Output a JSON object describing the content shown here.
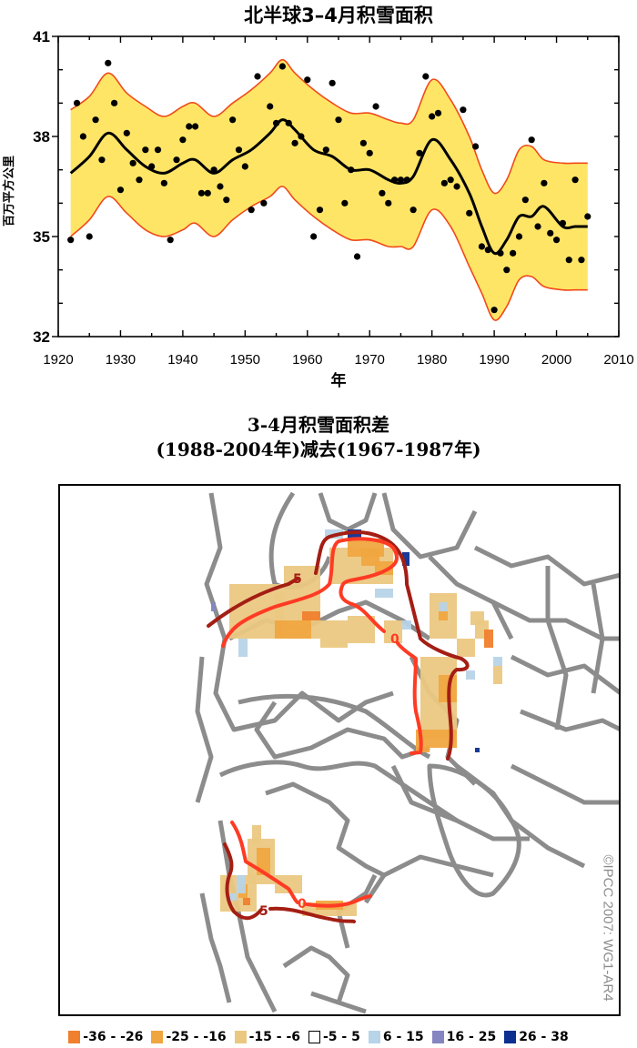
{
  "chart_data": [
    {
      "type": "scatter",
      "title": "北半球3–4月积雪面积",
      "xlabel": "年",
      "ylabel": "百万平方公里",
      "xlim": [
        1920,
        2010
      ],
      "ylim": [
        32,
        41
      ],
      "xticks": [
        1920,
        1930,
        1940,
        1950,
        1960,
        1970,
        1980,
        1990,
        2000,
        2010
      ],
      "yticks": [
        32,
        35,
        38,
        41
      ],
      "grid": false,
      "series": [
        {
          "name": "annual observations",
          "style": "black dots",
          "x": [
            1922,
            1923,
            1924,
            1925,
            1926,
            1927,
            1928,
            1929,
            1930,
            1931,
            1932,
            1933,
            1934,
            1935,
            1936,
            1937,
            1938,
            1939,
            1940,
            1941,
            1942,
            1943,
            1944,
            1945,
            1946,
            1947,
            1948,
            1949,
            1950,
            1951,
            1952,
            1953,
            1954,
            1955,
            1956,
            1957,
            1958,
            1959,
            1960,
            1961,
            1962,
            1963,
            1964,
            1965,
            1966,
            1967,
            1968,
            1969,
            1970,
            1971,
            1972,
            1973,
            1974,
            1975,
            1976,
            1977,
            1978,
            1979,
            1980,
            1981,
            1982,
            1983,
            1984,
            1985,
            1986,
            1987,
            1988,
            1989,
            1990,
            1991,
            1992,
            1993,
            1994,
            1995,
            1996,
            1997,
            1998,
            1999,
            2000,
            2001,
            2002,
            2003,
            2004,
            2005
          ],
          "y": [
            34.9,
            39.0,
            38.0,
            35.0,
            38.5,
            37.3,
            40.2,
            39.0,
            36.4,
            38.1,
            37.2,
            36.7,
            37.6,
            37.1,
            37.6,
            36.6,
            34.9,
            37.3,
            37.9,
            38.3,
            38.3,
            36.3,
            36.3,
            37.0,
            36.5,
            36.1,
            38.5,
            37.6,
            37.1,
            35.8,
            39.8,
            36.0,
            38.9,
            38.4,
            40.1,
            38.4,
            37.8,
            38.0,
            39.7,
            35.0,
            35.8,
            37.6,
            39.6,
            38.5,
            36.0,
            37.0,
            34.4,
            37.8,
            37.5,
            38.9,
            36.3,
            36.0,
            36.7,
            36.7,
            36.7,
            35.8,
            37.5,
            39.8,
            38.6,
            38.7,
            36.6,
            36.7,
            36.5,
            38.8,
            35.7,
            37.7,
            34.7,
            34.6,
            32.8,
            34.5,
            34.0,
            34.5,
            35.0,
            36.1,
            37.9,
            35.3,
            36.6,
            35.1,
            34.9,
            35.4,
            34.3,
            36.7,
            34.3,
            35.6
          ]
        },
        {
          "name": "smoothed decadal variation",
          "style": "black line",
          "x": [
            1922,
            1925,
            1928,
            1931,
            1934,
            1937,
            1940,
            1942,
            1945,
            1948,
            1951,
            1954,
            1956,
            1958,
            1961,
            1964,
            1967,
            1970,
            1973,
            1975,
            1977,
            1980,
            1983,
            1986,
            1988,
            1990,
            1992,
            1994,
            1996,
            1998,
            2001,
            2003,
            2005
          ],
          "y": [
            36.9,
            37.4,
            38.1,
            37.6,
            37.1,
            36.9,
            37.2,
            37.3,
            36.9,
            37.3,
            37.6,
            38.1,
            38.5,
            38.2,
            37.6,
            37.4,
            37.0,
            37.0,
            36.7,
            36.6,
            36.8,
            37.9,
            37.3,
            36.3,
            35.3,
            34.5,
            34.9,
            35.6,
            35.6,
            35.9,
            35.3,
            35.3,
            35.3
          ]
        },
        {
          "name": "5-95% range upper",
          "style": "yellow band, red edge",
          "x": [
            1922,
            1925,
            1928,
            1931,
            1934,
            1937,
            1940,
            1942,
            1945,
            1948,
            1951,
            1954,
            1956,
            1958,
            1961,
            1964,
            1967,
            1970,
            1973,
            1975,
            1977,
            1980,
            1983,
            1986,
            1988,
            1990,
            1992,
            1994,
            1996,
            1998,
            2001,
            2003,
            2005
          ],
          "y": [
            38.8,
            39.2,
            39.9,
            39.3,
            38.9,
            38.6,
            38.9,
            39.0,
            38.6,
            39.0,
            39.4,
            39.9,
            40.3,
            39.9,
            39.4,
            39.0,
            38.7,
            38.7,
            38.5,
            38.4,
            38.5,
            39.7,
            39.1,
            38.0,
            37.0,
            36.3,
            36.7,
            37.6,
            37.7,
            37.3,
            37.2,
            37.2,
            37.2
          ]
        },
        {
          "name": "5-95% range lower",
          "style": "yellow band, red edge",
          "x": [
            1922,
            1925,
            1928,
            1931,
            1934,
            1937,
            1940,
            1942,
            1945,
            1948,
            1951,
            1954,
            1956,
            1958,
            1961,
            1964,
            1967,
            1970,
            1973,
            1975,
            1977,
            1980,
            1983,
            1986,
            1988,
            1990,
            1992,
            1994,
            1996,
            1998,
            2001,
            2003,
            2005
          ],
          "y": [
            35.0,
            35.5,
            36.2,
            35.7,
            35.2,
            35.0,
            35.2,
            35.4,
            35.0,
            35.5,
            35.9,
            36.2,
            36.5,
            36.1,
            35.6,
            35.2,
            34.9,
            34.9,
            34.7,
            34.7,
            34.7,
            35.8,
            35.3,
            34.1,
            33.3,
            32.5,
            32.9,
            33.7,
            33.8,
            33.5,
            33.4,
            33.4,
            33.4
          ]
        }
      ],
      "colors": {
        "band_fill": "#ffe566",
        "band_edge": "#f04a1a",
        "dots": "#000000",
        "line": "#000000"
      }
    },
    {
      "type": "heatmap",
      "title": "3-4月积雪面积差",
      "subtitle": "(1988-2004年)减去(1967-1987年)",
      "projection": "north polar stereographic",
      "contours": [
        {
          "label": "5",
          "color": "#a41e14"
        },
        {
          "label": "0",
          "color": "#ff3b24"
        }
      ],
      "legend": [
        {
          "label": "-36 - -26",
          "color": "#f07f2e"
        },
        {
          "label": "-25 - -16",
          "color": "#f0a640"
        },
        {
          "label": "-15 - -6",
          "color": "#ebc882"
        },
        {
          "label": "-5 - 5",
          "color": "#ffffff"
        },
        {
          "label": "6 - 15",
          "color": "#b8d4e8"
        },
        {
          "label": "16 - 25",
          "color": "#8585c2"
        },
        {
          "label": "26 - 38",
          "color": "#0d2f90"
        }
      ]
    }
  ],
  "top_chart": {
    "title": "北半球3–4月积雪面积",
    "ylabel": "百万平方公里",
    "xlabel": "年"
  },
  "map": {
    "title_line1": "3-4月积雪面积差",
    "title_line2": "(1988-2004年)减去(1967-1987年)",
    "copyright": "©IPCC 2007: WG1-AR4",
    "contour_label_5": "5",
    "contour_label_0": "0"
  }
}
